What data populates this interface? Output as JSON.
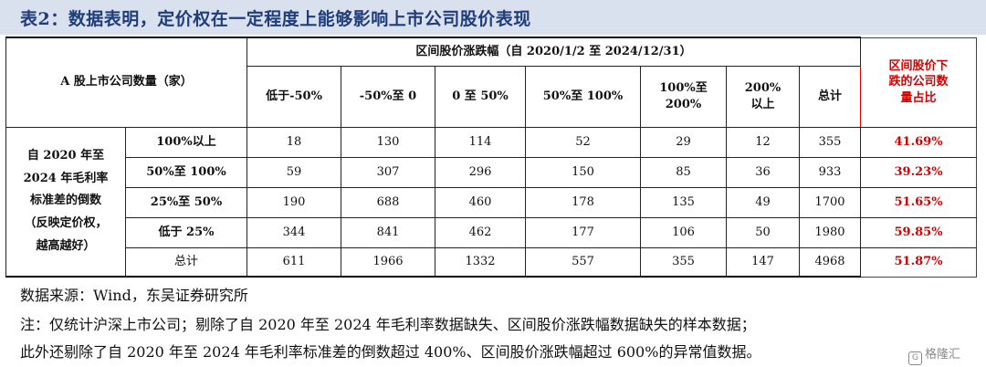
{
  "title": "表2：数据表明，定价权在一定程度上能够影响上市公司股价表现",
  "table": {
    "corner_label": "A 股上市公司数量（家）",
    "group_header": "区间股价涨跌幅（自 2020/1/2 至 2024/12/31）",
    "pct_header": "区间股价下跌的公司数量占比",
    "pct_header_lines": [
      "区间股价下",
      "跌的公司数",
      "量占比"
    ],
    "columns": [
      "低于-50%",
      "-50%至 0",
      "0 至 50%",
      "50%至 100%",
      "100%至 200%",
      "200%以上",
      "总计"
    ],
    "columns_lines": [
      [
        "低于-50%"
      ],
      [
        "-50%至 0"
      ],
      [
        "0 至 50%"
      ],
      [
        "50%至 100%"
      ],
      [
        "100%至",
        "200%"
      ],
      [
        "200%",
        "以上"
      ],
      [
        "总计"
      ]
    ],
    "row_group_label": "自 2020 年至 2024 年毛利率标准差的倒数（反映定价权，越高越好）",
    "row_group_lines": [
      "自 2020 年至",
      "2024 年毛利率",
      "标准差的倒数",
      "（反映定价权，",
      "越高越好）"
    ],
    "rows": [
      {
        "label": "100%以上",
        "values": [
          "18",
          "130",
          "114",
          "52",
          "29",
          "12",
          "355"
        ],
        "pct": "41.69%"
      },
      {
        "label": "50%至 100%",
        "values": [
          "59",
          "307",
          "296",
          "150",
          "85",
          "36",
          "933"
        ],
        "pct": "39.23%"
      },
      {
        "label": "25%至 50%",
        "values": [
          "190",
          "688",
          "460",
          "178",
          "135",
          "49",
          "1700"
        ],
        "pct": "51.65%"
      },
      {
        "label": "低于 25%",
        "values": [
          "344",
          "841",
          "462",
          "177",
          "106",
          "50",
          "1980"
        ],
        "pct": "59.85%"
      },
      {
        "label": "总计",
        "values": [
          "611",
          "1966",
          "1332",
          "557",
          "355",
          "147",
          "4968"
        ],
        "pct": "51.87%"
      }
    ]
  },
  "notes": [
    "数据来源：Wind，东吴证券研究所",
    "注：仅统计沪深上市公司；剔除了自 2020 年至 2024 年毛利率数据缺失、区间股价涨跌幅数据缺失的样本数据；",
    "此外还剔除了自 2020 年至 2024 年毛利率标准差的倒数超过 400%、区间股价涨跌幅超过 600%的异常值数据。"
  ],
  "watermark": "格隆汇",
  "colors": {
    "title": "#1f3d7a",
    "title_bg": "#d9e1ee",
    "highlight": "#d40000"
  }
}
